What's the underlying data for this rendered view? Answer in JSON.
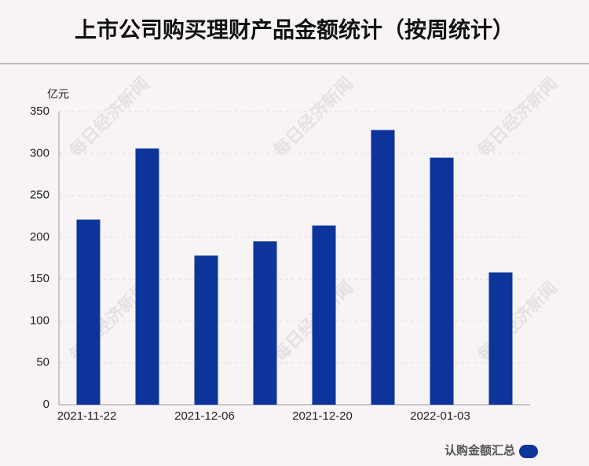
{
  "chart_data": {
    "type": "bar",
    "title": "上市公司购买理财产品金额统计（按周统计）",
    "y_unit": "亿元",
    "watermark": "每日经济新闻",
    "categories": [
      "2021-11-22",
      null,
      "2021-12-06",
      null,
      "2021-12-20",
      null,
      "2022-01-03",
      null
    ],
    "series": [
      {
        "name": "认购金额汇总",
        "color": "#0d349b",
        "values": [
          221,
          306,
          178,
          195,
          214,
          328,
          295,
          158
        ]
      }
    ],
    "ylim": [
      0,
      350
    ],
    "yticks": [
      0,
      50,
      100,
      150,
      200,
      250,
      300,
      350
    ],
    "grid": true
  }
}
